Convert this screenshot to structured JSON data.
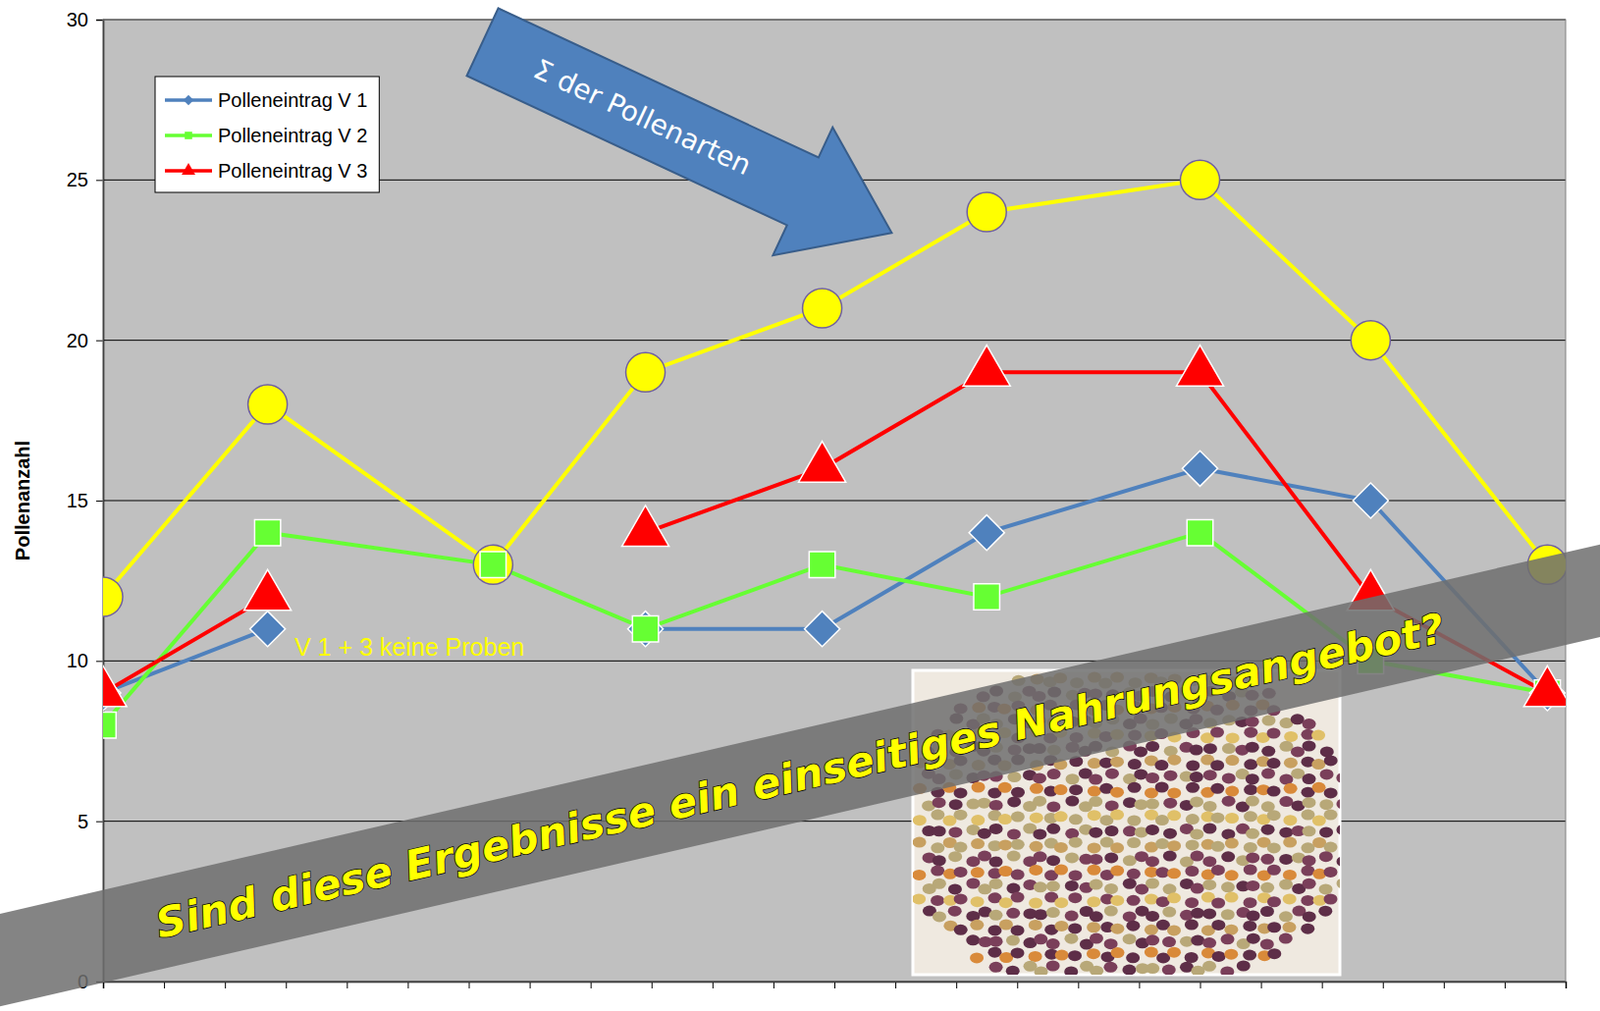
{
  "chart_data": {
    "type": "line",
    "x": [
      0,
      2.7,
      6.4,
      8.9,
      11.8,
      14.5,
      18,
      20.8,
      23.7
    ],
    "xlim": [
      0,
      24
    ],
    "xticks": [
      0,
      1,
      2,
      3,
      4,
      5,
      6,
      7,
      8,
      9,
      10,
      11,
      12,
      13,
      14,
      15,
      16,
      17,
      18,
      19,
      20,
      21,
      22,
      23,
      24
    ],
    "ylim": [
      0,
      30
    ],
    "yticks": [
      0,
      5,
      10,
      15,
      20,
      25,
      30
    ],
    "y_label": "Pollenanzahl",
    "grid": true,
    "legend": "upper left",
    "tick_labels": "y",
    "series": [
      {
        "color": "#ffff00",
        "marker": "circle",
        "line_style": "solid",
        "values": [
          12,
          18,
          13,
          19,
          21,
          24,
          25,
          20,
          13
        ]
      },
      {
        "name": "Polleneintrag V 1",
        "color": "#4f81bd",
        "marker": "diamond",
        "line_style": "solid",
        "values": [
          9,
          11,
          null,
          11,
          11,
          14,
          16,
          15,
          9
        ]
      },
      {
        "name": "Polleneintrag V 2",
        "color": "#66ff33",
        "marker": "square",
        "line_style": "solid",
        "values": [
          8,
          14,
          13,
          11,
          13,
          12,
          14,
          10,
          9
        ]
      },
      {
        "name": "Polleneintrag V 3",
        "color": "#ff0000",
        "marker": "triangle",
        "line_style": "solid",
        "values": [
          9,
          12,
          null,
          14,
          16,
          19,
          19,
          12,
          9
        ]
      }
    ],
    "annotations": [
      "Σ der Pollenarten",
      "V 1 + 3 keine Proben",
      "Sind diese Ergebnisse ein einseitiges Nahrungsangebot?"
    ]
  }
}
